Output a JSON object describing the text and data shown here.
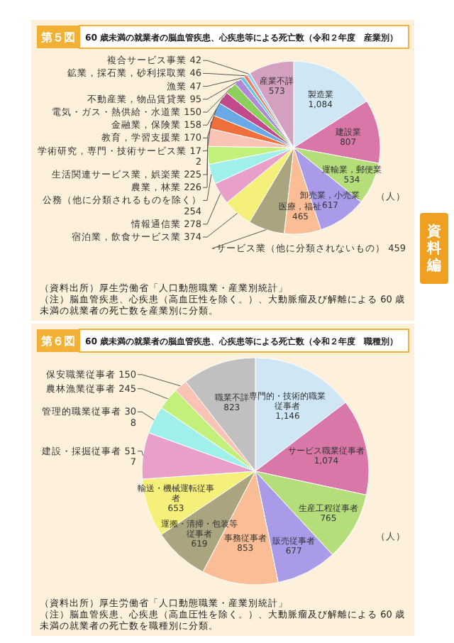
{
  "chart_data": [
    {
      "type": "pie",
      "title": "60 歳未満の就業者の脳血管疾患、心疾患等による死亡数（令和２年度　産業別）",
      "annotations": [
        "第５図",
        "（人）",
        "（資料出所）厚生労働省「人口動態職業・産業別統計」",
        "（注）脳血管疾患、心疾患（高血圧性を除く。）、大動脈瘤及び解離による 60 歳未満の就業者の死亡数を産業別に分類。"
      ],
      "categories": [
        "製造業",
        "建設業",
        "運輸業，郵便業",
        "卸売業，小売業",
        "医療，福祉",
        "サービス業（他に分類されないもの）",
        "宿泊業，飲食サービス業",
        "情報通信業",
        "公務（他に分類されるものを除く）",
        "農業，林業",
        "生活関連サービス業，娯楽業",
        "学術研究，専門・技術サービス業",
        "教育，学習支援業",
        "金融業，保険業",
        "電気・ガス・熱供給・水道業",
        "不動産業，物品賃貸業",
        "漁業",
        "鉱業，採石業，砂利採取業",
        "複合サービス事業",
        "産業不詳"
      ],
      "values": [
        1084,
        807,
        534,
        617,
        465,
        459,
        374,
        278,
        254,
        226,
        225,
        172,
        170,
        158,
        150,
        95,
        47,
        46,
        42,
        573
      ],
      "value_labels": [
        "1,084",
        "807",
        "534",
        "617",
        "465",
        "459",
        "374",
        "278",
        "254",
        "226",
        "225",
        "172",
        "170",
        "158",
        "150",
        "95",
        "47",
        "46",
        "42",
        "573"
      ],
      "colors": [
        "#cfe6f5",
        "#d977a8",
        "#b5de7a",
        "#a99be8",
        "#fbbd95",
        "#aaa57e",
        "#f5f07a",
        "#e8a0c8",
        "#9ff0ea",
        "#c2f07a",
        "#f9c4b5",
        "#f0703c",
        "#6aa8e8",
        "#c04a8c",
        "#8ccf5a",
        "#b08ad8",
        "#60c8e0",
        "#f08060",
        "#a0d0f0",
        "#d4a0c0"
      ]
    },
    {
      "type": "pie",
      "title": "60 歳未満の就業者の脳血管疾患、心疾患等による死亡数（令和２年度　職種別）",
      "annotations": [
        "第６図",
        "（人）",
        "（資料出所）厚生労働省「人口動態職業・産業別統計」",
        "（注）脳血管疾患、心疾患（高血圧性を除く。）、大動脈瘤及び解離による 60 歳未満の就業者の死亡数を職種別に分類。"
      ],
      "categories": [
        "専門的・技術的職業従事者",
        "サービス職業従事者",
        "生産工程従事者",
        "販売従事者",
        "事務従事者",
        "運搬・清掃・包装等従事者",
        "輸送・機械運転従事者",
        "建設・採掘従事者",
        "管理的職業従事者",
        "農林漁業従事者",
        "保安職業従事者",
        "職業不詳"
      ],
      "values": [
        1146,
        1074,
        765,
        677,
        853,
        619,
        653,
        517,
        308,
        245,
        150,
        823
      ],
      "value_labels": [
        "1,146",
        "1,074",
        "765",
        "677",
        "853",
        "619",
        "653",
        "517",
        "308",
        "245",
        "150",
        "823"
      ],
      "colors": [
        "#cfe6f5",
        "#d977a8",
        "#b5de7a",
        "#a99be8",
        "#fbbd95",
        "#aaa57e",
        "#f5f07a",
        "#e8a0c8",
        "#9ff0ea",
        "#c2f07a",
        "#f9c4b5",
        "#c0c0c0"
      ]
    },
    {
      "type": "other",
      "annotations": [
        "資料編"
      ]
    }
  ]
}
